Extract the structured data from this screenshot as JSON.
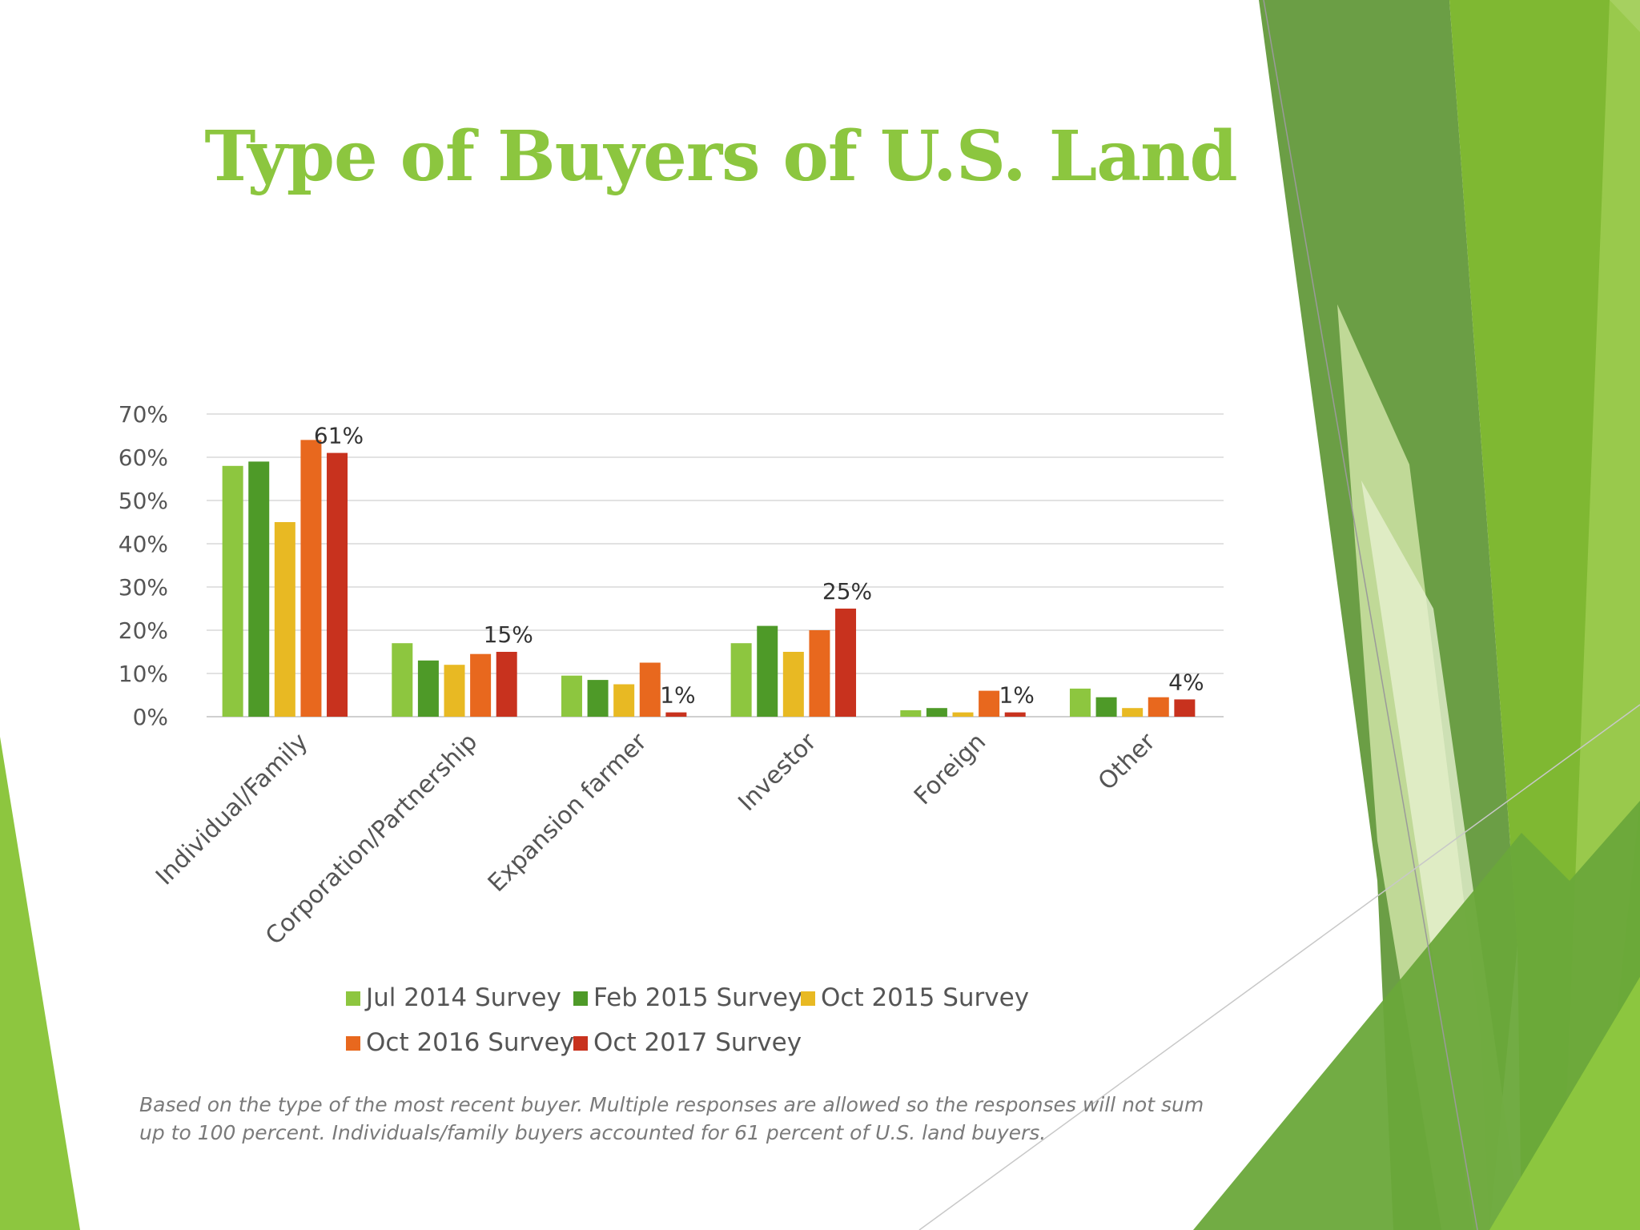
{
  "slide": {
    "title": "Type of Buyers of U.S. Land",
    "footnote": "Based on the type of the most recent buyer. Multiple responses are allowed so the responses will not sum up to 100 percent. Individuals/family buyers accounted for 61 percent of U.S. land buyers.",
    "accent_color": "#8cc63f"
  },
  "chart_data": {
    "type": "bar",
    "categories": [
      "Individual/Family",
      "Corporation/Partnership",
      "Expansion farmer",
      "Investor",
      "Foreign",
      "Other"
    ],
    "series": [
      {
        "name": "Jul 2014 Survey",
        "color": "#8dc63f",
        "values": [
          58,
          17,
          9.5,
          17,
          1.5,
          6.5
        ]
      },
      {
        "name": "Feb 2015 Survey",
        "color": "#4e9a28",
        "values": [
          59,
          13,
          8.5,
          21,
          2,
          4.5
        ]
      },
      {
        "name": "Oct 2015 Survey",
        "color": "#e8b923",
        "values": [
          45,
          12,
          7.5,
          15,
          1,
          2
        ]
      },
      {
        "name": "Oct 2016 Survey",
        "color": "#e8681e",
        "values": [
          64,
          14.5,
          12.5,
          20,
          6,
          4.5
        ]
      },
      {
        "name": "Oct 2017 Survey",
        "color": "#c8321e",
        "values": [
          61,
          15,
          1,
          25,
          1,
          4
        ]
      }
    ],
    "data_labels": [
      "61%",
      "15%",
      "1%",
      "25%",
      "1%",
      "4%"
    ],
    "y_ticks": [
      "0%",
      "10%",
      "20%",
      "30%",
      "40%",
      "50%",
      "60%",
      "70%"
    ],
    "ylim": [
      0,
      70
    ],
    "grid": true,
    "legend": "bottom",
    "title": "",
    "xlabel": "",
    "ylabel": ""
  }
}
